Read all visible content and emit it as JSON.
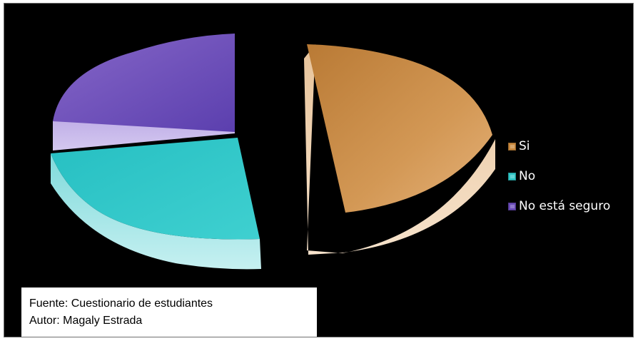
{
  "chart_data": {
    "type": "pie",
    "style": "3d-exploded",
    "categories": [
      "Si",
      "No",
      "No está seguro"
    ],
    "values": [
      48,
      26,
      26
    ],
    "colors": [
      "#c9883d",
      "#2fc6c6",
      "#6a4bb8"
    ],
    "side_colors": [
      "#efd2b0",
      "#a7e9ea",
      "#c4b3e8"
    ],
    "legend": "right",
    "title": ""
  },
  "legend": {
    "items": [
      {
        "label": "Si",
        "color": "#c9883d"
      },
      {
        "label": "No",
        "color": "#2fc6c6"
      },
      {
        "label": "No está seguro",
        "color": "#6a4bb8"
      }
    ]
  },
  "source": {
    "line1": "Fuente: Cuestionario de estudiantes",
    "line2": "Autor: Magaly Estrada"
  }
}
